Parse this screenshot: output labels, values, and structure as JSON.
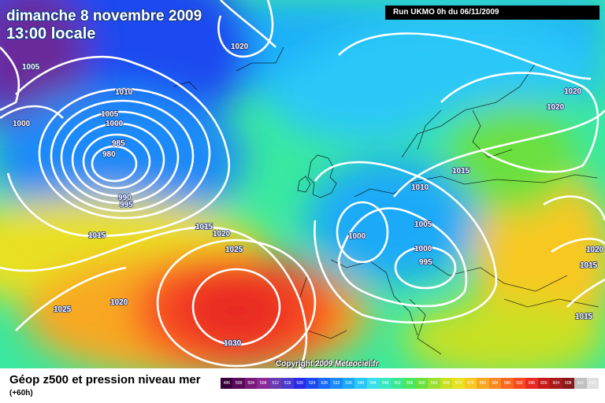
{
  "title": {
    "date": "dimanche 8 novembre 2009",
    "time": "13:00 locale"
  },
  "run_info": "Run UKMO 0h du 06/11/2009",
  "copyright": "Copyright 2009 Meteociel.fr",
  "footer": {
    "title": "Géop z500 et pression niveau mer",
    "subtitle": "(+60h)"
  },
  "color_scale": [
    {
      "label": "496",
      "color": "#3a003a"
    },
    {
      "label": "500",
      "color": "#5a0a5a"
    },
    {
      "label": "504",
      "color": "#7a1a7a"
    },
    {
      "label": "508",
      "color": "#8a2a9a"
    },
    {
      "label": "512",
      "color": "#6a3ab0"
    },
    {
      "label": "516",
      "color": "#4a3ad0"
    },
    {
      "label": "520",
      "color": "#2a2ae8"
    },
    {
      "label": "524",
      "color": "#1a4af0"
    },
    {
      "label": "528",
      "color": "#1a6af8"
    },
    {
      "label": "532",
      "color": "#1a8af8"
    },
    {
      "label": "536",
      "color": "#1aaaf8"
    },
    {
      "label": "540",
      "color": "#2ac8f8"
    },
    {
      "label": "544",
      "color": "#3ae0e8"
    },
    {
      "label": "548",
      "color": "#3ae8c0"
    },
    {
      "label": "552",
      "color": "#3ae890"
    },
    {
      "label": "556",
      "color": "#4ae860"
    },
    {
      "label": "560",
      "color": "#6ae040"
    },
    {
      "label": "564",
      "color": "#9ae030"
    },
    {
      "label": "568",
      "color": "#c8e020"
    },
    {
      "label": "572",
      "color": "#e8e020"
    },
    {
      "label": "576",
      "color": "#f8c820"
    },
    {
      "label": "580",
      "color": "#f8a820"
    },
    {
      "label": "584",
      "color": "#f88820"
    },
    {
      "label": "588",
      "color": "#f86820"
    },
    {
      "label": "592",
      "color": "#f84820"
    },
    {
      "label": "596",
      "color": "#e82a20"
    },
    {
      "label": "600",
      "color": "#c81a1a"
    },
    {
      "label": "604",
      "color": "#a81a1a"
    },
    {
      "label": "608",
      "color": "#881a1a"
    },
    {
      "label": "612",
      "color": "#c0c0c0"
    },
    {
      "label": "616",
      "color": "#e0e0e0"
    }
  ],
  "isobar_labels": [
    {
      "text": "1005"
    },
    {
      "text": "1000"
    },
    {
      "text": "1010"
    },
    {
      "text": "1005"
    },
    {
      "text": "1000"
    },
    {
      "text": "985"
    },
    {
      "text": "980"
    },
    {
      "text": "990"
    },
    {
      "text": "995"
    },
    {
      "text": "1020"
    },
    {
      "text": "1015"
    },
    {
      "text": "1015"
    },
    {
      "text": "1020"
    },
    {
      "text": "1025"
    },
    {
      "text": "1025"
    },
    {
      "text": "1020"
    },
    {
      "text": "1030"
    },
    {
      "text": "1000"
    },
    {
      "text": "1005"
    },
    {
      "text": "1000"
    },
    {
      "text": "995"
    },
    {
      "text": "1010"
    },
    {
      "text": "1015"
    },
    {
      "text": "1020"
    },
    {
      "text": "1020"
    },
    {
      "text": "1015"
    },
    {
      "text": "1015"
    },
    {
      "text": "1020"
    }
  ]
}
